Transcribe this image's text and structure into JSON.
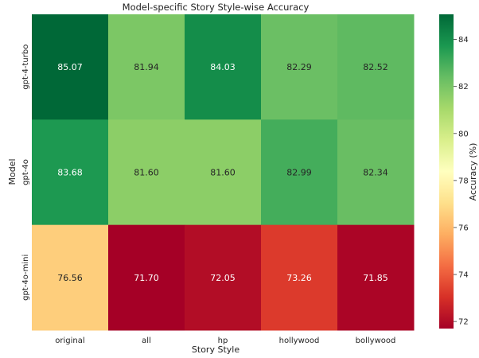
{
  "chart_data": {
    "type": "heatmap",
    "title": "Model-specific Story Style-wise Accuracy",
    "xlabel": "Story Style",
    "ylabel": "Model",
    "x": [
      "original",
      "all",
      "hp",
      "hollywood",
      "bollywood"
    ],
    "y": [
      "gpt-4-turbo",
      "gpt-4o",
      "gpt-4o-mini"
    ],
    "values": [
      [
        85.07,
        81.94,
        84.03,
        82.29,
        82.52
      ],
      [
        83.68,
        81.6,
        81.6,
        82.99,
        82.34
      ],
      [
        76.56,
        71.7,
        72.05,
        73.26,
        71.85
      ]
    ],
    "value_labels": [
      [
        "85.07",
        "81.94",
        "84.03",
        "82.29",
        "82.52"
      ],
      [
        "83.68",
        "81.60",
        "81.60",
        "82.99",
        "82.34"
      ],
      [
        "76.56",
        "71.70",
        "72.05",
        "73.26",
        "71.85"
      ]
    ],
    "colormap": "RdYlGn",
    "colorbar": {
      "label": "Accuracy (%)",
      "range": [
        71.7,
        85.07
      ],
      "ticks": [
        72,
        74,
        76,
        78,
        80,
        82,
        84
      ]
    },
    "grid": false,
    "legend": "right"
  }
}
